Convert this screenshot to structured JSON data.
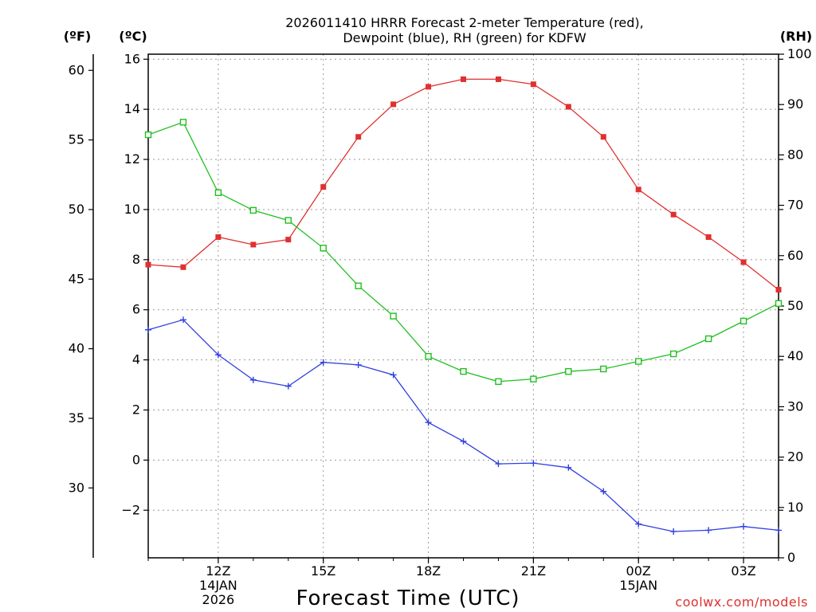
{
  "chart_data": {
    "type": "line",
    "title": [
      "2026011410 HRRR Forecast 2-meter Temperature (red),",
      "Dewpoint (blue), RH (green) for KDFW"
    ],
    "xlabel": "Forecast Time (UTC)",
    "credit": "coolwx.com/models",
    "units": {
      "fahrenheit": "(ºF)",
      "celsius": "(ºC)",
      "rh": "(RH)"
    },
    "x_hours": [
      10,
      11,
      12,
      13,
      14,
      15,
      16,
      17,
      18,
      19,
      20,
      21,
      22,
      23,
      24,
      25,
      26,
      27,
      28
    ],
    "x_ticks": [
      {
        "hour": 12,
        "lines": [
          "12Z",
          "14JAN",
          "2026"
        ]
      },
      {
        "hour": 15,
        "lines": [
          "15Z"
        ]
      },
      {
        "hour": 18,
        "lines": [
          "18Z"
        ]
      },
      {
        "hour": 21,
        "lines": [
          "21Z"
        ]
      },
      {
        "hour": 24,
        "lines": [
          "00Z",
          "15JAN"
        ]
      },
      {
        "hour": 27,
        "lines": [
          "03Z"
        ]
      }
    ],
    "x_range": [
      10,
      28
    ],
    "celsius_axis": {
      "range": [
        -3.9,
        16.2
      ],
      "ticks": [
        -2,
        0,
        2,
        4,
        6,
        8,
        10,
        12,
        14,
        16
      ]
    },
    "fahrenheit_axis": {
      "ticks": [
        30,
        35,
        40,
        45,
        50,
        55,
        60
      ]
    },
    "rh_axis": {
      "range": [
        0,
        100
      ],
      "ticks": [
        0,
        10,
        20,
        30,
        40,
        50,
        60,
        70,
        80,
        90,
        100
      ]
    },
    "series": [
      {
        "name": "Temperature",
        "unit": "C",
        "color": "#e03030",
        "marker": "filled-square",
        "values": [
          7.8,
          7.7,
          8.9,
          8.6,
          8.8,
          10.9,
          12.9,
          14.2,
          14.9,
          15.2,
          15.2,
          15.0,
          14.1,
          12.9,
          10.8,
          9.8,
          8.9,
          7.9,
          6.8
        ]
      },
      {
        "name": "Dewpoint",
        "unit": "C",
        "color": "#3040e0",
        "marker": "plus",
        "values": [
          5.2,
          5.6,
          4.2,
          3.2,
          2.95,
          3.9,
          3.8,
          3.4,
          1.5,
          0.75,
          -0.15,
          -0.12,
          -0.3,
          -1.25,
          -2.55,
          -2.85,
          -2.8,
          -2.65,
          -2.8
        ]
      },
      {
        "name": "RH",
        "unit": "%",
        "color": "#20c020",
        "marker": "open-square",
        "values": [
          84,
          86.5,
          72.5,
          69,
          67,
          61.5,
          54,
          48,
          40,
          37,
          35,
          35.5,
          37,
          37.5,
          39,
          40.5,
          43.5,
          47,
          50.5
        ]
      }
    ]
  }
}
